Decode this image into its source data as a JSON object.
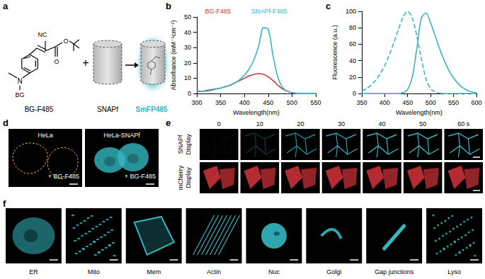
{
  "panel_labels": [
    "a",
    "b",
    "c",
    "d",
    "e",
    "f"
  ],
  "a": {
    "ligand": "BG-F485",
    "protein": "SNAPf",
    "product": "SmFP485",
    "operator": "+",
    "atoms": {
      "nitrile": "NC",
      "amine": "N",
      "tag": "BG",
      "carbonyl": "O",
      "ester": "O"
    }
  },
  "chart_data": [
    {
      "type": "line",
      "x_label": "Wavelength(nm)",
      "y_label": "Absorbance (mM⁻¹cm⁻¹)",
      "x": [
        300,
        310,
        320,
        330,
        340,
        350,
        360,
        370,
        380,
        390,
        400,
        410,
        420,
        430,
        440,
        450,
        460,
        470,
        480,
        490,
        500,
        510,
        520,
        530,
        540,
        550
      ],
      "series": [
        {
          "name": "BG-F485",
          "color": "#c8393b",
          "values": [
            1.5,
            1.5,
            2,
            2.5,
            3,
            3.5,
            4.5,
            5.5,
            7,
            8.5,
            10,
            11.5,
            12.5,
            13,
            12.5,
            11,
            8.5,
            5.5,
            3,
            1.5,
            0.5,
            0.2,
            0,
            0,
            0,
            0
          ]
        },
        {
          "name": "SNAPf-F485",
          "color": "#33b8c1",
          "values": [
            2,
            1.5,
            1.5,
            2,
            3,
            3.5,
            4.5,
            5.5,
            7,
            9,
            12,
            16,
            22,
            31,
            43,
            42,
            25,
            11,
            4,
            1.5,
            0.5,
            0,
            0,
            0,
            0,
            0
          ]
        }
      ],
      "xlim": [
        300,
        550
      ],
      "xticks": [
        300,
        350,
        400,
        450,
        500,
        550
      ],
      "ylim": [
        0,
        50
      ],
      "yticks": [
        0,
        10,
        20,
        30,
        40,
        50
      ],
      "legend": "top"
    },
    {
      "type": "line",
      "x_label": "Wavelength(nm)",
      "y_label": "Fluorescence (a.u.)",
      "x": [
        350,
        360,
        370,
        380,
        390,
        400,
        410,
        420,
        430,
        440,
        450,
        460,
        470,
        480,
        490,
        500,
        510,
        520,
        530,
        540,
        550,
        560,
        570,
        580,
        590,
        600
      ],
      "series": [
        {
          "color": "#33b8c1",
          "line_style": "dashed",
          "values": [
            3,
            6,
            10,
            16,
            24,
            34,
            47,
            62,
            78,
            93,
            100,
            92,
            70,
            42,
            18,
            6,
            2,
            0.5,
            0,
            0,
            0,
            0,
            0,
            0,
            0,
            0
          ]
        },
        {
          "color": "#33b8c1",
          "line_style": "solid",
          "values": [
            0,
            0,
            0,
            0,
            0,
            0,
            0,
            0,
            0,
            1,
            5,
            20,
            55,
            92,
            98,
            86,
            70,
            54,
            40,
            28,
            19,
            12,
            7,
            4,
            2,
            1
          ]
        }
      ],
      "xlim": [
        350,
        600
      ],
      "xticks": [
        350,
        400,
        450,
        500,
        550,
        600
      ],
      "ylim": [
        0,
        100
      ],
      "yticks": [
        0,
        20,
        40,
        60,
        80,
        100
      ]
    }
  ],
  "d": {
    "images": [
      {
        "title": "HeLa",
        "caption": "+ BG-F485"
      },
      {
        "title": "HeLa-SNAPf",
        "caption": "+ BG-F485"
      }
    ]
  },
  "e": {
    "times": [
      "0",
      "10",
      "20",
      "30",
      "40",
      "50",
      "60 s"
    ],
    "rows": [
      "SNAPf Display",
      "mCherry Display"
    ]
  },
  "f": {
    "labels": [
      "ER",
      "Mito",
      "Mem",
      "Actin",
      "Nuc",
      "Golgi",
      "Gap junctions",
      "Lyso"
    ]
  }
}
